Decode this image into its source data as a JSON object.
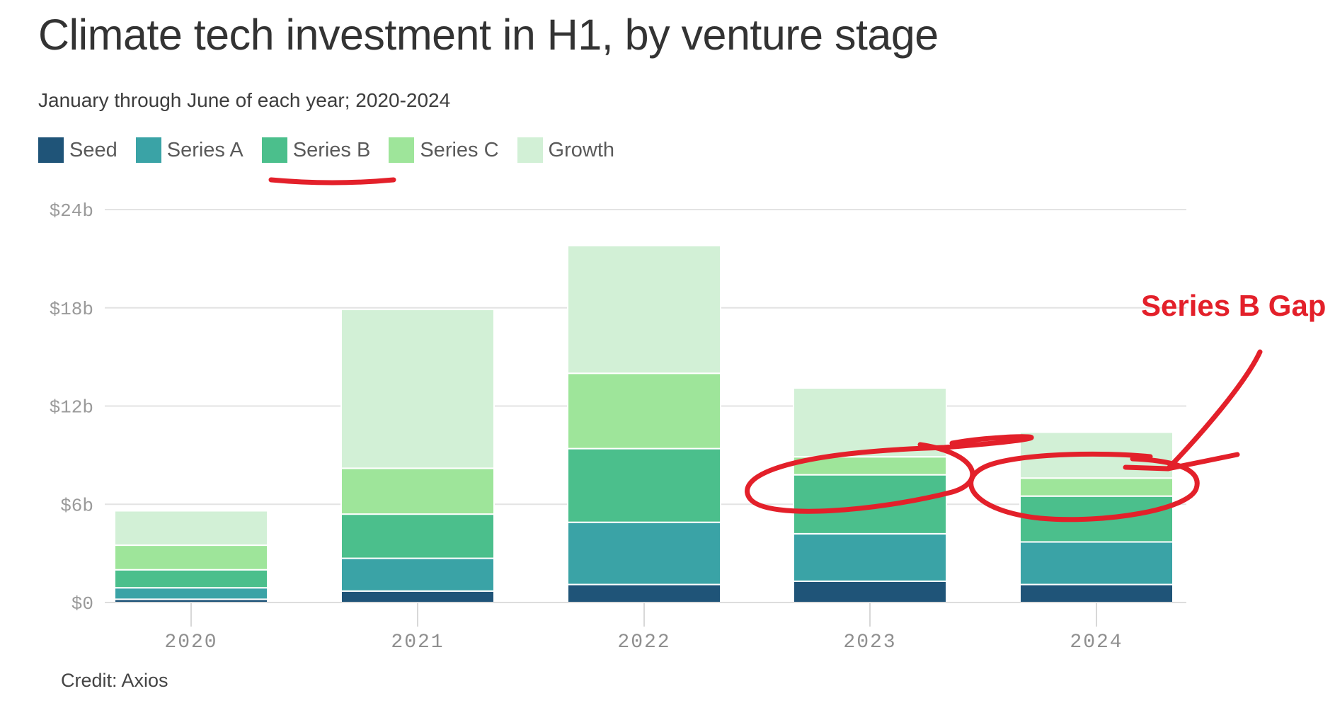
{
  "chart_data": {
    "type": "bar",
    "stacked": true,
    "title": "Climate tech investment in H1, by venture stage",
    "subtitle": "January through June of each year; 2020-2024",
    "categories": [
      "2020",
      "2021",
      "2022",
      "2023",
      "2024"
    ],
    "series": [
      {
        "name": "Seed",
        "color": "#1f5478",
        "values": [
          0.2,
          0.7,
          1.1,
          1.3,
          1.1
        ]
      },
      {
        "name": "Series A",
        "color": "#3aa3a6",
        "values": [
          0.7,
          2.0,
          3.8,
          2.9,
          2.6
        ]
      },
      {
        "name": "Series B",
        "color": "#4bbf8c",
        "values": [
          1.1,
          2.7,
          4.5,
          3.6,
          2.8
        ]
      },
      {
        "name": "Series C",
        "color": "#9ee59a",
        "values": [
          1.5,
          2.8,
          4.6,
          1.1,
          1.1
        ]
      },
      {
        "name": "Growth",
        "color": "#d2f0d6",
        "values": [
          2.1,
          9.7,
          7.8,
          4.2,
          2.8
        ]
      }
    ],
    "ylim": [
      0,
      24
    ],
    "yticks": [
      0,
      6,
      12,
      18,
      24
    ],
    "ytick_labels": [
      "$0",
      "$6b",
      "$12b",
      "$18b",
      "$24b"
    ],
    "grid": true,
    "legend_position": "top-left"
  },
  "credit": "Credit: Axios",
  "annotation": {
    "text": "Series B Gap",
    "color": "#e3202a"
  }
}
